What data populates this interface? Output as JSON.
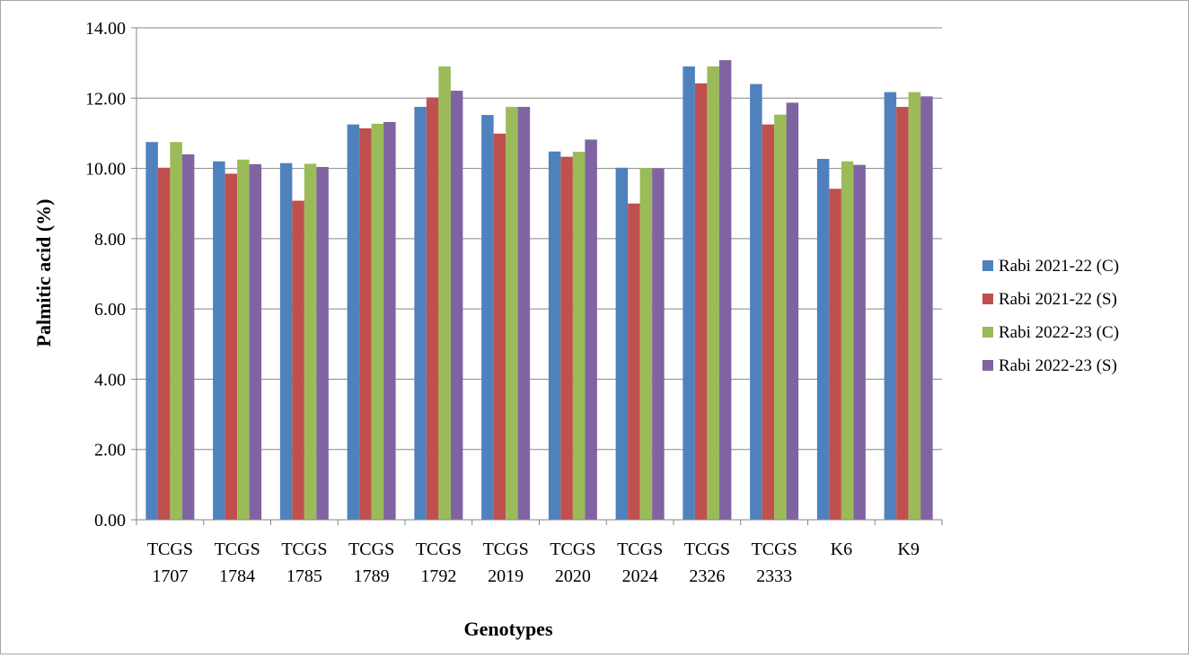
{
  "chart_data": {
    "type": "bar",
    "title": "",
    "xlabel": "Genotypes",
    "ylabel": "Palmitic acid (%)",
    "ylim": [
      0,
      14
    ],
    "yticks": [
      "0.00",
      "2.00",
      "4.00",
      "6.00",
      "8.00",
      "10.00",
      "12.00",
      "14.00"
    ],
    "grid": true,
    "legend_position": "right",
    "categories": [
      [
        "TCGS",
        "1707"
      ],
      [
        "TCGS",
        "1784"
      ],
      [
        "TCGS",
        "1785"
      ],
      [
        "TCGS",
        "1789"
      ],
      [
        "TCGS",
        "1792"
      ],
      [
        "TCGS",
        "2019"
      ],
      [
        "TCGS",
        "2020"
      ],
      [
        "TCGS",
        "2024"
      ],
      [
        "TCGS",
        "2326"
      ],
      [
        "TCGS",
        "2333"
      ],
      [
        "K6"
      ],
      [
        "K9"
      ]
    ],
    "series": [
      {
        "name": "Rabi 2021-22 (C)",
        "color": "#4f81bd",
        "values": [
          10.75,
          10.2,
          10.15,
          11.25,
          11.75,
          11.52,
          10.48,
          10.02,
          12.9,
          12.4,
          10.27,
          12.17
        ]
      },
      {
        "name": "Rabi 2021-22 (S)",
        "color": "#c0504d",
        "values": [
          10.02,
          9.85,
          9.08,
          11.14,
          12.02,
          10.99,
          10.33,
          9.0,
          12.42,
          11.25,
          9.42,
          11.75
        ]
      },
      {
        "name": "Rabi 2022-23 (C)",
        "color": "#9bbb59",
        "values": [
          10.75,
          10.25,
          10.13,
          11.27,
          12.9,
          11.75,
          10.47,
          10.01,
          12.9,
          11.53,
          10.2,
          12.17
        ]
      },
      {
        "name": "Rabi 2022-23 (S)",
        "color": "#8064a2",
        "values": [
          10.4,
          10.12,
          10.04,
          11.32,
          12.21,
          11.75,
          10.82,
          10.0,
          13.08,
          11.87,
          10.1,
          12.05
        ]
      }
    ]
  }
}
